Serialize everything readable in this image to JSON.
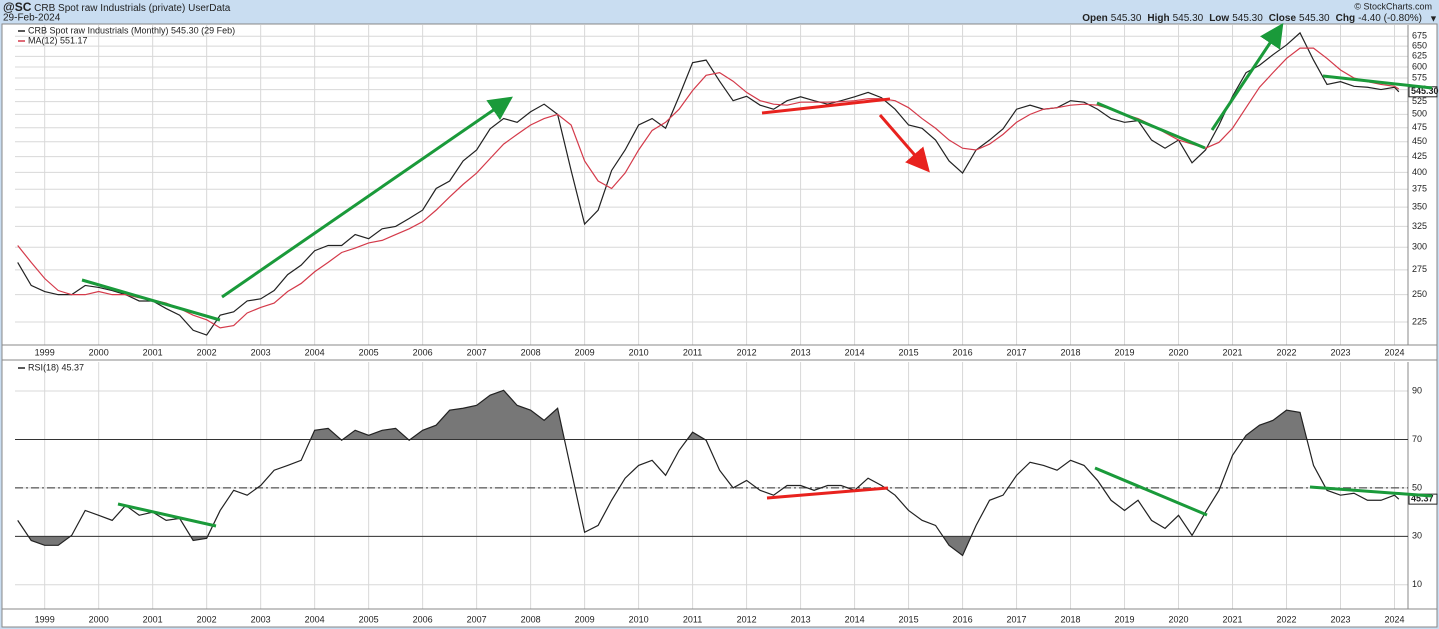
{
  "header": {
    "symbol": "@SC",
    "description": "CRB Spot raw Industrials (private)",
    "source": "UserData",
    "date": "29-Feb-2024",
    "credit": "© StockCharts.com",
    "quote": [
      {
        "label": "Open",
        "value": "545.30"
      },
      {
        "label": "High",
        "value": "545.30"
      },
      {
        "label": "Low",
        "value": "545.30"
      },
      {
        "label": "Close",
        "value": "545.30"
      },
      {
        "label": "Chg",
        "value": "-4.40 (-0.80%)"
      }
    ]
  },
  "chart_data": [
    {
      "type": "line",
      "log_scale": true,
      "grid": true,
      "x": [
        1998.5,
        1998.75,
        1999,
        1999.25,
        1999.5,
        1999.75,
        2000,
        2000.25,
        2000.5,
        2000.75,
        2001,
        2001.25,
        2001.5,
        2001.75,
        2002,
        2002.25,
        2002.5,
        2002.75,
        2003,
        2003.25,
        2003.5,
        2003.75,
        2004,
        2004.25,
        2004.5,
        2004.75,
        2005,
        2005.25,
        2005.5,
        2005.75,
        2006,
        2006.25,
        2006.5,
        2006.75,
        2007,
        2007.25,
        2007.5,
        2007.75,
        2008,
        2008.25,
        2008.5,
        2008.75,
        2009,
        2009.25,
        2009.5,
        2009.75,
        2010,
        2010.25,
        2010.5,
        2010.75,
        2011,
        2011.25,
        2011.5,
        2011.75,
        2012,
        2012.25,
        2012.5,
        2012.75,
        2013,
        2013.25,
        2013.5,
        2013.75,
        2014,
        2014.25,
        2014.5,
        2014.75,
        2015,
        2015.25,
        2015.5,
        2015.75,
        2016,
        2016.25,
        2016.5,
        2016.75,
        2017,
        2017.25,
        2017.5,
        2017.75,
        2018,
        2018.25,
        2018.5,
        2018.75,
        2019,
        2019.25,
        2019.5,
        2019.75,
        2020,
        2020.25,
        2020.5,
        2020.75,
        2021,
        2021.25,
        2021.5,
        2021.75,
        2022,
        2022.25,
        2022.5,
        2022.75,
        2023,
        2023.25,
        2023.5,
        2023.75,
        2024,
        2024.08
      ],
      "series": [
        {
          "name": "CRB Spot raw Industrials (Monthly) 545.30 (29 Feb)",
          "color": "#222222",
          "last_label": "545.30",
          "values": [
            283,
            259,
            253,
            250,
            250,
            259,
            257,
            254,
            250,
            244,
            244,
            237,
            231,
            218,
            214,
            231,
            234,
            244,
            246,
            254,
            270,
            280,
            296,
            302,
            302,
            315,
            310,
            322,
            325,
            335,
            346,
            376,
            387,
            418,
            436,
            473,
            492,
            485,
            505,
            520,
            500,
            403,
            328,
            346,
            403,
            436,
            480,
            492,
            474,
            536,
            610,
            616,
            568,
            527,
            536,
            518,
            510,
            527,
            535,
            527,
            520,
            527,
            535,
            544,
            533,
            510,
            480,
            474,
            453,
            418,
            399,
            436,
            453,
            473,
            510,
            518,
            510,
            513,
            527,
            524,
            510,
            492,
            485,
            488,
            453,
            439,
            453,
            415,
            436,
            480,
            536,
            587,
            604,
            629,
            653,
            684,
            616,
            561,
            567,
            557,
            555,
            550,
            555,
            545.3
          ]
        },
        {
          "name": "MA(12) 551.17",
          "color": "#d43a4a",
          "values": [
            302,
            283,
            266,
            254,
            250,
            250,
            253,
            250,
            250,
            247,
            245,
            242,
            237,
            231,
            227,
            220,
            222,
            233,
            238,
            242,
            253,
            261,
            273,
            283,
            294,
            299,
            305,
            308,
            315,
            322,
            331,
            346,
            364,
            382,
            399,
            422,
            446,
            463,
            480,
            492,
            500,
            480,
            418,
            387,
            376,
            399,
            436,
            470,
            485,
            510,
            548,
            581,
            587,
            568,
            544,
            527,
            520,
            518,
            524,
            524,
            524,
            525,
            527,
            531,
            531,
            527,
            513,
            492,
            474,
            453,
            439,
            436,
            446,
            463,
            485,
            500,
            510,
            513,
            518,
            520,
            518,
            510,
            500,
            492,
            480,
            466,
            453,
            446,
            439,
            449,
            474,
            513,
            555,
            587,
            620,
            645,
            645,
            620,
            593,
            575,
            567,
            561,
            557,
            551.17
          ]
        }
      ],
      "xlim": [
        1998.45,
        2024.25
      ],
      "xticks": [
        1999,
        2000,
        2001,
        2002,
        2003,
        2004,
        2005,
        2006,
        2007,
        2008,
        2009,
        2010,
        2011,
        2012,
        2013,
        2014,
        2015,
        2016,
        2017,
        2018,
        2019,
        2020,
        2021,
        2022,
        2023,
        2024
      ],
      "ylim": [
        206,
        705
      ],
      "yticks": [
        225,
        250,
        275,
        300,
        325,
        350,
        375,
        400,
        425,
        450,
        475,
        500,
        525,
        550,
        575,
        600,
        625,
        650,
        675
      ]
    },
    {
      "type": "line",
      "log_scale": false,
      "grid": true,
      "overbought": 70,
      "oversold": 30,
      "midline": 50,
      "x": [
        1998.5,
        1998.75,
        1999,
        1999.25,
        1999.5,
        1999.75,
        2000,
        2000.25,
        2000.5,
        2000.75,
        2001,
        2001.25,
        2001.5,
        2001.75,
        2002,
        2002.25,
        2002.5,
        2002.75,
        2003,
        2003.25,
        2003.5,
        2003.75,
        2004,
        2004.25,
        2004.5,
        2004.75,
        2005,
        2005.25,
        2005.5,
        2005.75,
        2006,
        2006.25,
        2006.5,
        2006.75,
        2007,
        2007.25,
        2007.5,
        2007.75,
        2008,
        2008.25,
        2008.5,
        2008.75,
        2009,
        2009.25,
        2009.5,
        2009.75,
        2010,
        2010.25,
        2010.5,
        2010.75,
        2011,
        2011.25,
        2011.5,
        2011.75,
        2012,
        2012.25,
        2012.5,
        2012.75,
        2013,
        2013.25,
        2013.5,
        2013.75,
        2014,
        2014.25,
        2014.5,
        2014.75,
        2015,
        2015.25,
        2015.5,
        2015.75,
        2016,
        2016.25,
        2016.5,
        2016.75,
        2017,
        2017.25,
        2017.5,
        2017.75,
        2018,
        2018.25,
        2018.5,
        2018.75,
        2019,
        2019.25,
        2019.5,
        2019.75,
        2020,
        2020.25,
        2020.5,
        2020.75,
        2021,
        2021.25,
        2021.5,
        2021.75,
        2022,
        2022.25,
        2022.5,
        2022.75,
        2023,
        2023.25,
        2023.5,
        2023.75,
        2024,
        2024.08
      ],
      "series": [
        {
          "name": "RSI(18) 45.37",
          "color": "#222222",
          "last_label": "45.37",
          "values": [
            36.6,
            28.3,
            26.3,
            26.3,
            30.4,
            40.7,
            38.7,
            36.6,
            42.8,
            38.7,
            40,
            36.6,
            37.4,
            28.3,
            29.2,
            40.7,
            49,
            47,
            51,
            57.3,
            59.3,
            61.4,
            73.8,
            74.6,
            69.7,
            73.8,
            71.7,
            73.8,
            74.6,
            69.7,
            73.8,
            75.9,
            82.1,
            82.9,
            84.1,
            88.3,
            90.3,
            84.1,
            82.1,
            77.9,
            82.9,
            57.3,
            31.7,
            34.5,
            44.9,
            54,
            59.3,
            61.4,
            55.2,
            65.5,
            73,
            69.7,
            57.3,
            50,
            53.1,
            49,
            47,
            51,
            51,
            49,
            51,
            51,
            49,
            54,
            51,
            47,
            40.7,
            36.6,
            34.5,
            26.3,
            22.1,
            34.5,
            44.9,
            47,
            55.2,
            60.6,
            59.3,
            57.3,
            61.4,
            59.3,
            53.1,
            44.9,
            40.7,
            44.9,
            36.6,
            33.3,
            38.7,
            30.4,
            40,
            49,
            63.5,
            71.7,
            75.9,
            77.9,
            82.1,
            81.2,
            59.3,
            49,
            47,
            47.8,
            44.9,
            44.9,
            47,
            45.37
          ]
        }
      ],
      "xlim": [
        1998.45,
        2024.25
      ],
      "xticks": [
        1999,
        2000,
        2001,
        2002,
        2003,
        2004,
        2005,
        2006,
        2007,
        2008,
        2009,
        2010,
        2011,
        2012,
        2013,
        2014,
        2015,
        2016,
        2017,
        2018,
        2019,
        2020,
        2021,
        2022,
        2023,
        2024
      ],
      "ylim": [
        0,
        102
      ],
      "yticks": [
        10,
        30,
        50,
        70,
        90
      ]
    }
  ]
}
